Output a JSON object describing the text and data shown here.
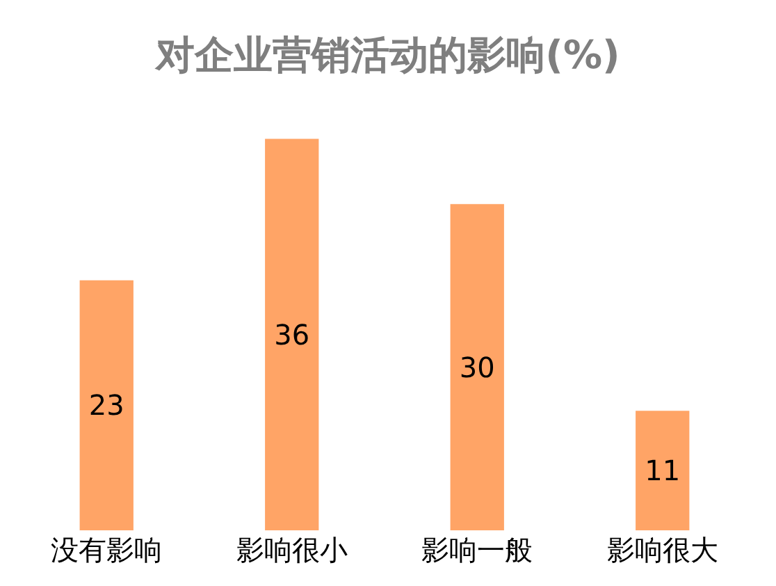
{
  "chart_data": {
    "type": "bar",
    "title": "对企业营销活动的影响(%)",
    "categories": [
      "没有影响",
      "影响很小",
      "影响一般",
      "影响很大"
    ],
    "values": [
      23,
      36,
      30,
      11
    ],
    "color": "#ffa466",
    "data_labels": true,
    "legend": false
  }
}
